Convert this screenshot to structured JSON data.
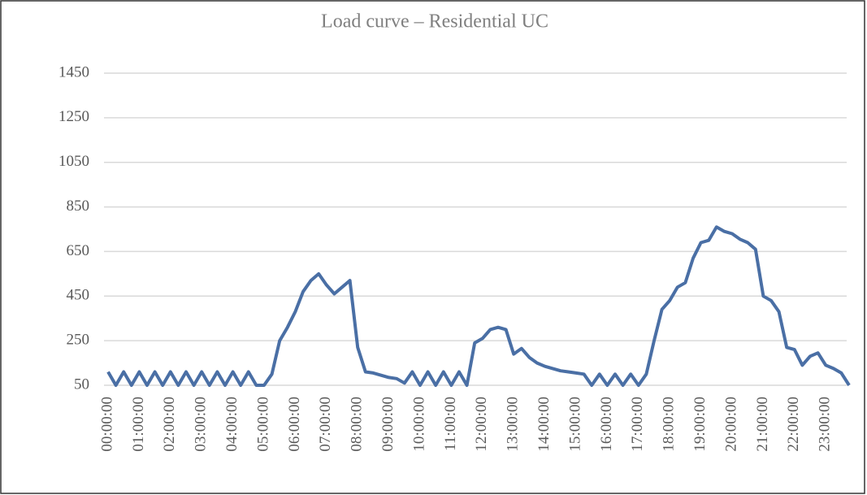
{
  "chart_data": {
    "type": "line",
    "title": "Load curve – Residential UC",
    "categories": [
      "00:00:00",
      null,
      null,
      null,
      "01:00:00",
      null,
      null,
      null,
      "02:00:00",
      null,
      null,
      null,
      "03:00:00",
      null,
      null,
      null,
      "04:00:00",
      null,
      null,
      null,
      "05:00:00",
      null,
      null,
      null,
      "06:00:00",
      null,
      null,
      null,
      "07:00:00",
      null,
      null,
      null,
      "08:00:00",
      null,
      null,
      null,
      "09:00:00",
      null,
      null,
      null,
      "10:00:00",
      null,
      null,
      null,
      "11:00:00",
      null,
      null,
      null,
      "12:00:00",
      null,
      null,
      null,
      "13:00:00",
      null,
      null,
      null,
      "14:00:00",
      null,
      null,
      null,
      "15:00:00",
      null,
      null,
      null,
      "16:00:00",
      null,
      null,
      null,
      "17:00:00",
      null,
      null,
      null,
      "18:00:00",
      null,
      null,
      null,
      "19:00:00",
      null,
      null,
      null,
      "20:00:00",
      null,
      null,
      null,
      "21:00:00",
      null,
      null,
      null,
      "22:00:00",
      null,
      null,
      null,
      "23:00:00",
      null,
      null,
      null
    ],
    "series": [
      {
        "color": "#4a6fa5",
        "values": [
          110,
          50,
          110,
          50,
          110,
          50,
          110,
          50,
          110,
          50,
          110,
          50,
          110,
          50,
          110,
          50,
          110,
          50,
          110,
          50,
          50,
          100,
          250,
          310,
          380,
          470,
          520,
          550,
          500,
          460,
          490,
          520,
          220,
          110,
          105,
          95,
          85,
          80,
          60,
          110,
          50,
          110,
          50,
          110,
          50,
          110,
          50,
          240,
          260,
          300,
          310,
          300,
          190,
          215,
          175,
          150,
          135,
          125,
          115,
          110,
          105,
          100,
          50,
          100,
          50,
          100,
          50,
          100,
          50,
          100,
          250,
          390,
          430,
          490,
          510,
          620,
          690,
          700,
          760,
          740,
          730,
          705,
          690,
          660,
          450,
          430,
          380,
          220,
          210,
          140,
          180,
          195,
          140,
          125,
          105,
          50
        ]
      }
    ],
    "ylim": [
      50,
      1450
    ],
    "yticks": [
      50,
      250,
      450,
      650,
      850,
      1050,
      1250,
      1450
    ],
    "grid": true
  }
}
